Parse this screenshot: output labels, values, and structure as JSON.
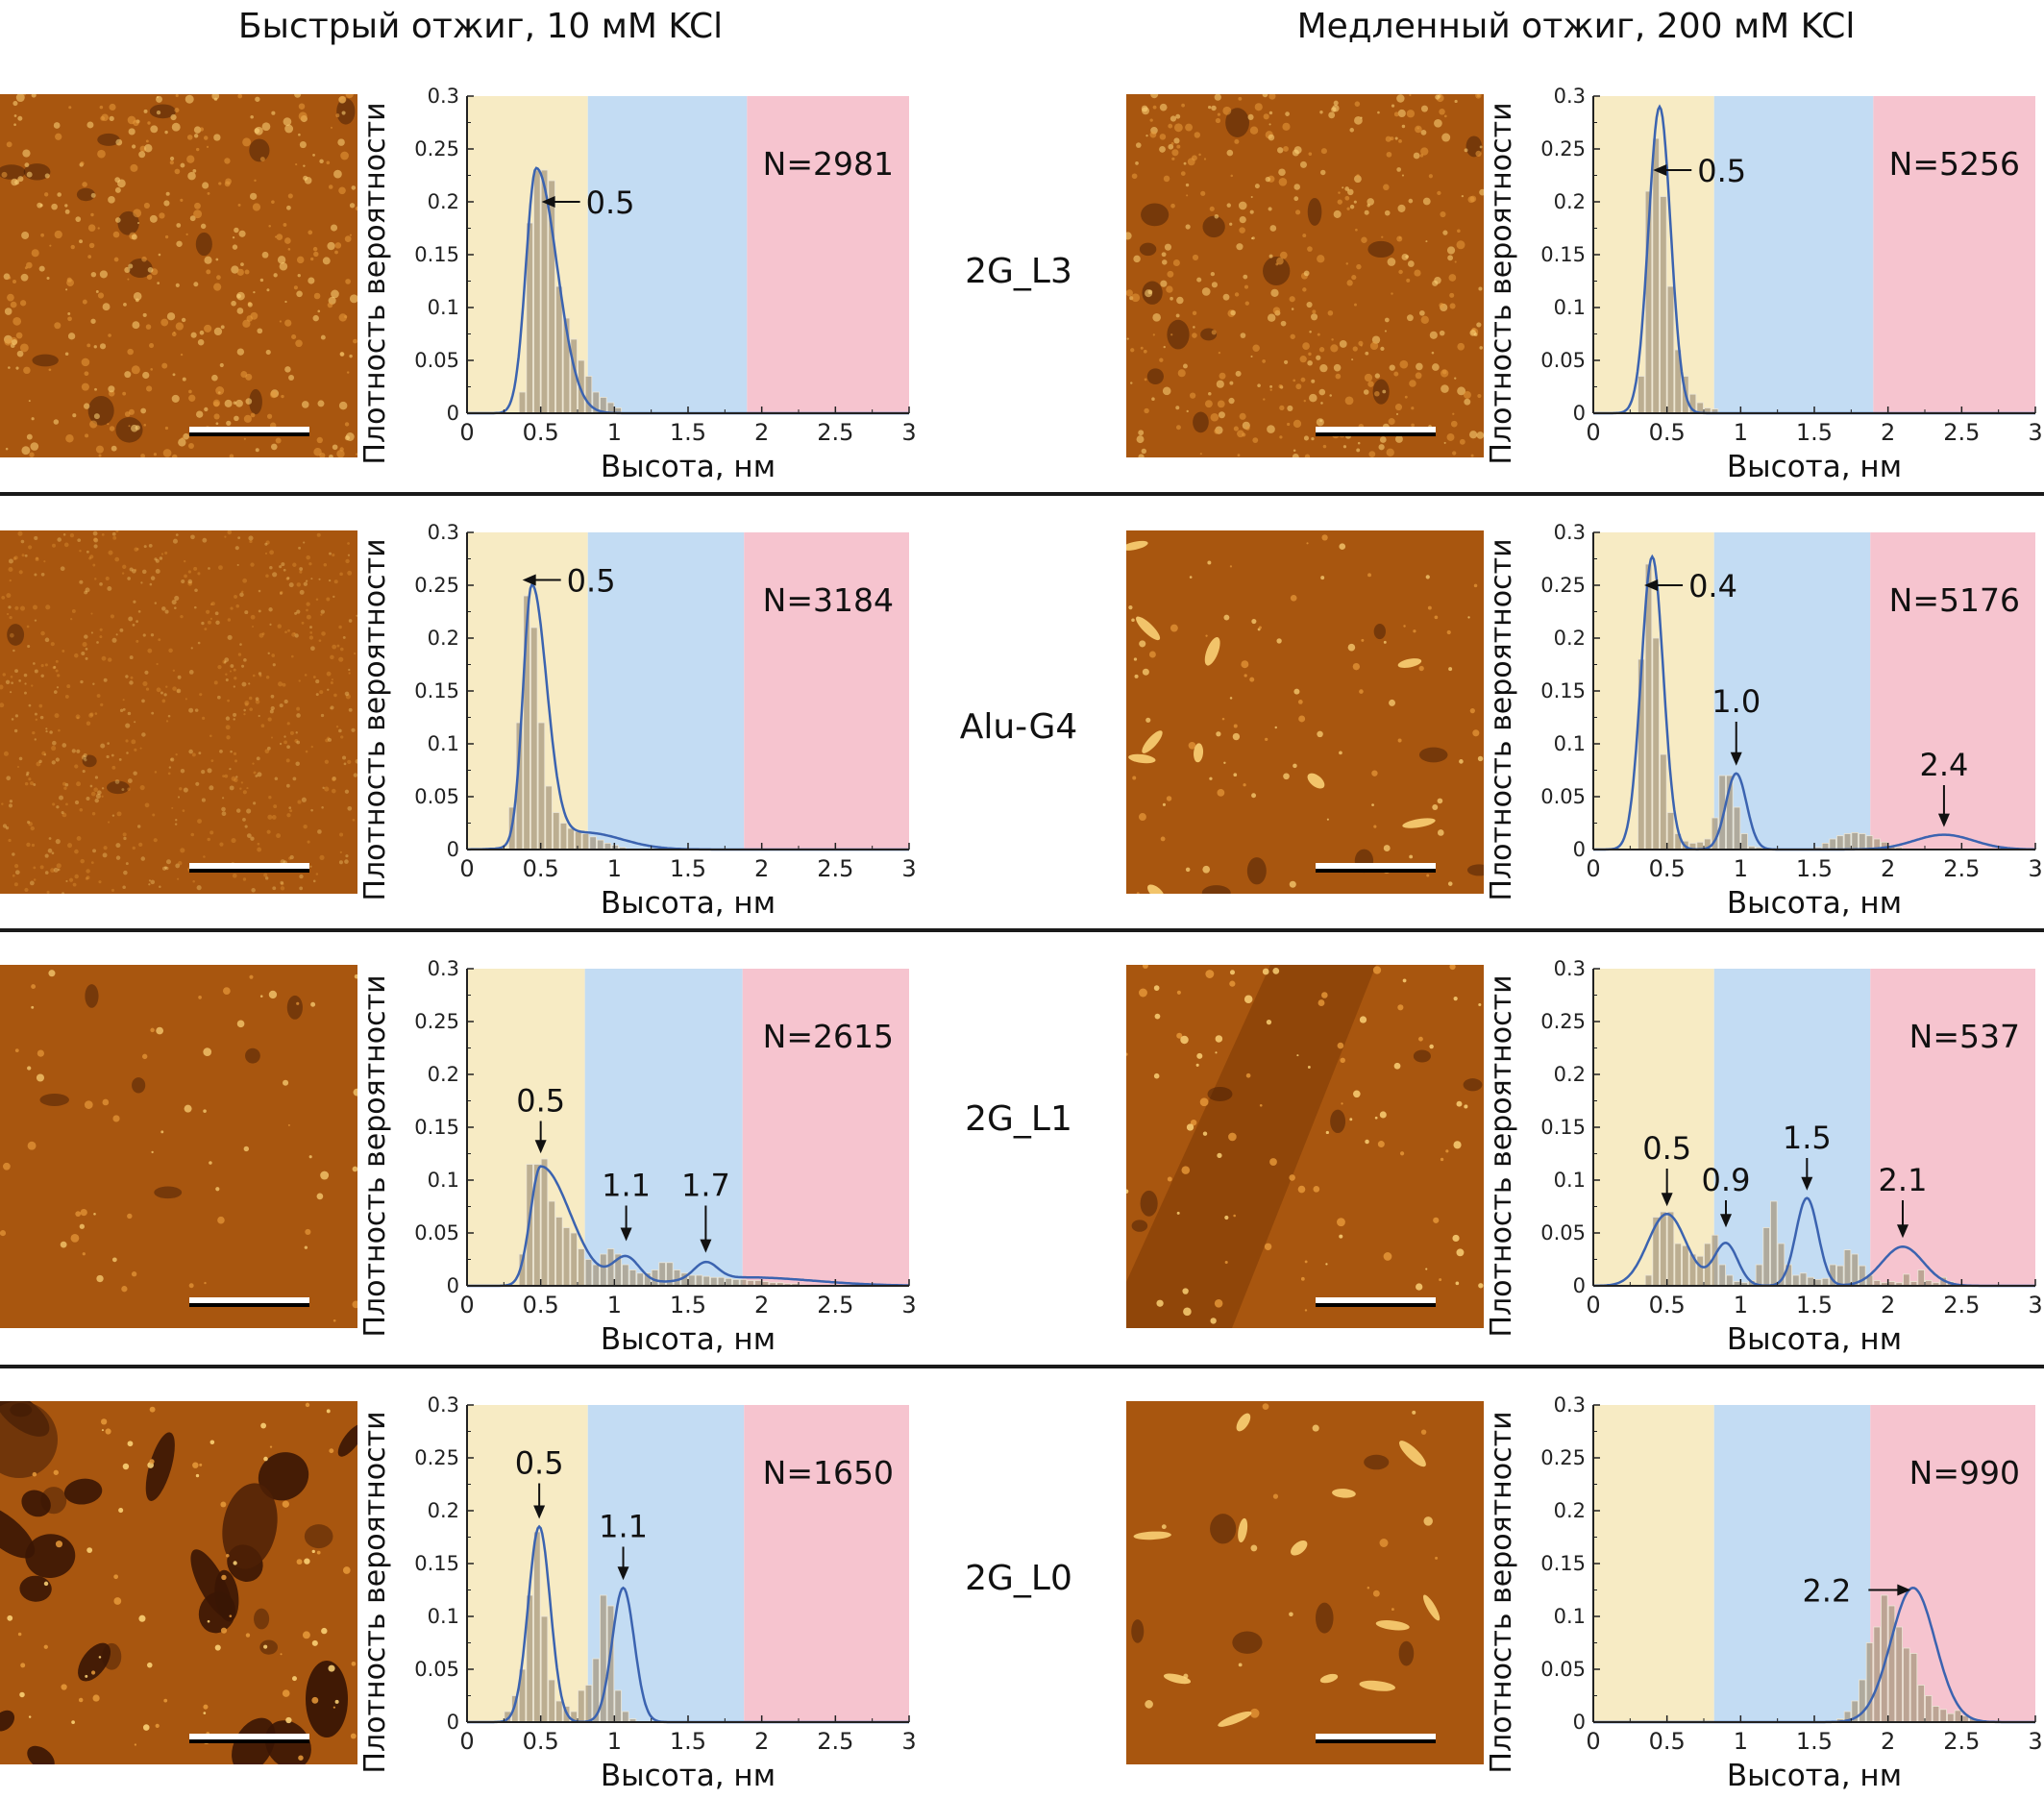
{
  "column_titles": {
    "left": "Быстрый отжиг, 10 мМ KCl",
    "right": "Медленный отжиг, 200 мМ KCl"
  },
  "rows": [
    {
      "label": "2G_L3"
    },
    {
      "label": "Alu-G4"
    },
    {
      "label": "2G_L1"
    },
    {
      "label": "2G_L0"
    }
  ],
  "axes": {
    "xlabel": "Высота, нм",
    "ylabel": "Плотность вероятности",
    "xlim": [
      0,
      3
    ],
    "ylim": [
      0,
      0.3
    ],
    "xticks": [
      "0",
      "0.5",
      "1",
      "1.5",
      "2",
      "2.5",
      "3"
    ],
    "yticks": [
      "0",
      "0.05",
      "0.1",
      "0.15",
      "0.2",
      "0.25",
      "0.3"
    ]
  },
  "colors": {
    "region_1": "#f7ebc4",
    "region_2": "#c3dcf3",
    "region_3": "#f6c4cf",
    "bars": "#a89a80",
    "fit_line": "#3b63b0",
    "afm_base": "#a8560f",
    "afm_bright": "#ffd77a",
    "afm_dark": "#3a1604"
  },
  "chart_data": [
    {
      "type": "bar",
      "panel": "row1-left",
      "title": "2G_L3 — Быстрый отжиг, 10 мМ KCl",
      "xlabel": "Высота, нм",
      "ylabel": "Плотность вероятности",
      "xlim": [
        0,
        3
      ],
      "ylim": [
        0,
        0.3
      ],
      "regions": [
        {
          "from": 0,
          "to": 0.82,
          "color": "region_1"
        },
        {
          "from": 0.82,
          "to": 1.9,
          "color": "region_2"
        },
        {
          "from": 1.9,
          "to": 3,
          "color": "region_3"
        }
      ],
      "n_label": "N=2981",
      "bin_width": 0.05,
      "bins_start": 0.35,
      "values": [
        0.02,
        0.18,
        0.23,
        0.23,
        0.22,
        0.12,
        0.09,
        0.07,
        0.05,
        0.035,
        0.02,
        0.015,
        0.01,
        0.005
      ],
      "fit": [
        {
          "type": "skew",
          "mu": 0.47,
          "sl": 0.07,
          "sr": 0.14,
          "a": 0.232
        }
      ],
      "peaks": [
        {
          "label": "0.5",
          "x": 0.47,
          "y": 0.232,
          "arrow": "left",
          "lx": 0.78,
          "ly": 0.2
        }
      ]
    },
    {
      "type": "bar",
      "panel": "row1-right",
      "title": "2G_L3 — Медленный отжиг, 200 мМ KCl",
      "xlabel": "Высота, нм",
      "ylabel": "Плотность вероятности",
      "xlim": [
        0,
        3
      ],
      "ylim": [
        0,
        0.3
      ],
      "regions": [
        {
          "from": 0,
          "to": 0.82,
          "color": "region_1"
        },
        {
          "from": 0.82,
          "to": 1.9,
          "color": "region_2"
        },
        {
          "from": 1.9,
          "to": 3,
          "color": "region_3"
        }
      ],
      "n_label": "N=5256",
      "bin_width": 0.05,
      "bins_start": 0.3,
      "values": [
        0.035,
        0.21,
        0.26,
        0.205,
        0.12,
        0.06,
        0.035,
        0.018,
        0.01,
        0.005,
        0.004
      ],
      "fit": [
        {
          "type": "gauss",
          "mu": 0.45,
          "s": 0.075,
          "a": 0.29
        }
      ],
      "peaks": [
        {
          "label": "0.5",
          "x": 0.45,
          "y": 0.29,
          "arrow": "left",
          "lx": 0.68,
          "ly": 0.23
        }
      ]
    },
    {
      "type": "bar",
      "panel": "row2-left",
      "title": "Alu-G4 — Быстрый отжиг, 10 мМ KCl",
      "xlabel": "Высота, нм",
      "ylabel": "Плотность вероятности",
      "xlim": [
        0,
        3
      ],
      "ylim": [
        0,
        0.3
      ],
      "regions": [
        {
          "from": 0,
          "to": 0.82,
          "color": "region_1"
        },
        {
          "from": 0.82,
          "to": 1.88,
          "color": "region_2"
        },
        {
          "from": 1.88,
          "to": 3,
          "color": "region_3"
        }
      ],
      "n_label": "N=3184",
      "bin_width": 0.05,
      "bins_start": 0.28,
      "values": [
        0.04,
        0.12,
        0.24,
        0.21,
        0.12,
        0.06,
        0.035,
        0.025,
        0.02,
        0.017,
        0.015,
        0.012,
        0.009,
        0.006,
        0.004,
        0.002
      ],
      "fit": [
        {
          "type": "skew",
          "mu": 0.44,
          "sl": 0.06,
          "sr": 0.1,
          "a": 0.245
        },
        {
          "type": "gauss",
          "mu": 0.8,
          "s": 0.25,
          "a": 0.016
        }
      ],
      "peaks": [
        {
          "label": "0.5",
          "x": 0.44,
          "y": 0.26,
          "arrow": "left",
          "lx": 0.65,
          "ly": 0.255
        }
      ]
    },
    {
      "type": "bar",
      "panel": "row2-right",
      "title": "Alu-G4 — Медленный отжиг, 200 мМ KCl",
      "xlabel": "Высота, нм",
      "ylabel": "Плотность вероятности",
      "xlim": [
        0,
        3
      ],
      "ylim": [
        0,
        0.3
      ],
      "regions": [
        {
          "from": 0,
          "to": 0.82,
          "color": "region_1"
        },
        {
          "from": 0.82,
          "to": 1.88,
          "color": "region_2"
        },
        {
          "from": 1.88,
          "to": 3,
          "color": "region_3"
        }
      ],
      "n_label": "N=5176",
      "bin_width": 0.05,
      "bins_start": 0.3,
      "values": [
        0.18,
        0.27,
        0.2,
        0.09,
        0.035,
        0.015,
        0.008,
        0.006,
        0.007,
        0.01,
        0.03,
        0.07,
        0.07,
        0.04,
        0.015,
        0.003,
        0.002,
        0.001,
        0,
        0,
        0,
        0,
        0,
        0,
        0.002,
        0.006,
        0.01,
        0.013,
        0.015,
        0.016,
        0.015,
        0.013,
        0.01,
        0.007,
        0.004,
        0.002
      ],
      "fit": [
        {
          "type": "gauss",
          "mu": 0.4,
          "s": 0.075,
          "a": 0.277
        },
        {
          "type": "gauss",
          "mu": 0.97,
          "s": 0.07,
          "a": 0.072
        },
        {
          "type": "gauss",
          "mu": 2.38,
          "s": 0.2,
          "a": 0.014
        }
      ],
      "peaks": [
        {
          "label": "0.4",
          "x": 0.4,
          "y": 0.277,
          "arrow": "left",
          "lx": 0.62,
          "ly": 0.25
        },
        {
          "label": "1.0",
          "x": 0.97,
          "y": 0.072,
          "arrow": "down",
          "lx": 0.97,
          "ly": 0.13
        },
        {
          "label": "2.4",
          "x": 2.38,
          "y": 0.014,
          "arrow": "down",
          "lx": 2.38,
          "ly": 0.07
        }
      ]
    },
    {
      "type": "bar",
      "panel": "row3-left",
      "title": "2G_L1 — Быстрый отжиг, 10 мМ KCl",
      "xlabel": "Высота, нм",
      "ylabel": "Плотность вероятности",
      "xlim": [
        0,
        3
      ],
      "ylim": [
        0,
        0.3
      ],
      "regions": [
        {
          "from": 0,
          "to": 0.8,
          "color": "region_1"
        },
        {
          "from": 0.8,
          "to": 1.87,
          "color": "region_2"
        },
        {
          "from": 1.87,
          "to": 3,
          "color": "region_3"
        }
      ],
      "n_label": "N=2615",
      "bin_width": 0.05,
      "bins_start": 0.35,
      "values": [
        0.03,
        0.115,
        0.115,
        0.12,
        0.08,
        0.065,
        0.055,
        0.05,
        0.035,
        0.025,
        0.02,
        0.03,
        0.035,
        0.03,
        0.02,
        0.015,
        0.012,
        0.012,
        0.015,
        0.022,
        0.022,
        0.015,
        0.012,
        0.01,
        0.01,
        0.009,
        0.008,
        0.008,
        0.007,
        0.006,
        0.006,
        0.005,
        0.005,
        0.004,
        0.003,
        0.003,
        0.002,
        0.002,
        0.001
      ],
      "fit": [
        {
          "type": "skew",
          "mu": 0.5,
          "sl": 0.07,
          "sr": 0.2,
          "a": 0.113
        },
        {
          "type": "gauss",
          "mu": 1.08,
          "s": 0.09,
          "a": 0.025
        },
        {
          "type": "gauss",
          "mu": 1.62,
          "s": 0.08,
          "a": 0.016
        },
        {
          "type": "gauss",
          "mu": 1.9,
          "s": 0.45,
          "a": 0.008
        }
      ],
      "peaks": [
        {
          "label": "0.5",
          "x": 0.5,
          "y": 0.118,
          "arrow": "down",
          "lx": 0.5,
          "ly": 0.165
        },
        {
          "label": "1.1",
          "x": 1.08,
          "y": 0.035,
          "arrow": "down",
          "lx": 1.08,
          "ly": 0.085
        },
        {
          "label": "1.7",
          "x": 1.62,
          "y": 0.024,
          "arrow": "down",
          "lx": 1.62,
          "ly": 0.085
        }
      ]
    },
    {
      "type": "bar",
      "panel": "row3-right",
      "title": "2G_L1 — Медленный отжиг, 200 мМ KCl",
      "xlabel": "Высота, нм",
      "ylabel": "Плотность вероятности",
      "xlim": [
        0,
        3
      ],
      "ylim": [
        0,
        0.3
      ],
      "regions": [
        {
          "from": 0,
          "to": 0.82,
          "color": "region_1"
        },
        {
          "from": 0.82,
          "to": 1.88,
          "color": "region_2"
        },
        {
          "from": 1.88,
          "to": 3,
          "color": "region_3"
        }
      ],
      "n_label": "N=537",
      "bin_width": 0.05,
      "bins_start": 0.35,
      "values": [
        0.01,
        0.065,
        0.07,
        0.07,
        0.04,
        0.038,
        0.03,
        0.028,
        0.04,
        0.048,
        0.02,
        0.01,
        0.004,
        0.003,
        0.005,
        0.02,
        0.055,
        0.08,
        0.04,
        0.02,
        0.01,
        0.012,
        0.008,
        0.006,
        0.007,
        0.02,
        0.019,
        0.034,
        0.03,
        0.019,
        0.01,
        0.005,
        0.003,
        0.004,
        0.003,
        0.011,
        0.004,
        0.015,
        0.005,
        0.003,
        0.008,
        0.004
      ],
      "fit": [
        {
          "type": "gauss",
          "mu": 0.5,
          "s": 0.13,
          "a": 0.068
        },
        {
          "type": "gauss",
          "mu": 0.9,
          "s": 0.08,
          "a": 0.04
        },
        {
          "type": "gauss",
          "mu": 1.45,
          "s": 0.075,
          "a": 0.083
        },
        {
          "type": "gauss",
          "mu": 2.1,
          "s": 0.14,
          "a": 0.037
        }
      ],
      "peaks": [
        {
          "label": "0.5",
          "x": 0.5,
          "y": 0.068,
          "arrow": "down",
          "lx": 0.5,
          "ly": 0.12
        },
        {
          "label": "0.9",
          "x": 0.9,
          "y": 0.048,
          "arrow": "down",
          "lx": 0.9,
          "ly": 0.09
        },
        {
          "label": "1.5",
          "x": 1.45,
          "y": 0.083,
          "arrow": "down",
          "lx": 1.45,
          "ly": 0.13
        },
        {
          "label": "2.1",
          "x": 2.1,
          "y": 0.038,
          "arrow": "down",
          "lx": 2.1,
          "ly": 0.09
        }
      ]
    },
    {
      "type": "bar",
      "panel": "row4-left",
      "title": "2G_L0 — Быстрый отжиг, 10 мМ KCl",
      "xlabel": "Высота, нм",
      "ylabel": "Плотность вероятности",
      "xlim": [
        0,
        3
      ],
      "ylim": [
        0,
        0.3
      ],
      "regions": [
        {
          "from": 0,
          "to": 0.82,
          "color": "region_1"
        },
        {
          "from": 0.82,
          "to": 1.88,
          "color": "region_2"
        },
        {
          "from": 1.88,
          "to": 3,
          "color": "region_3"
        }
      ],
      "n_label": "N=1650",
      "bin_width": 0.05,
      "bins_start": 0.25,
      "values": [
        0.01,
        0.025,
        0.05,
        0.12,
        0.18,
        0.1,
        0.04,
        0.02,
        0.015,
        0.01,
        0.03,
        0.035,
        0.06,
        0.12,
        0.11,
        0.03,
        0.01,
        0.003
      ],
      "fit": [
        {
          "type": "gauss",
          "mu": 0.49,
          "s": 0.075,
          "a": 0.185
        },
        {
          "type": "gauss",
          "mu": 1.06,
          "s": 0.075,
          "a": 0.127
        }
      ],
      "peaks": [
        {
          "label": "0.5",
          "x": 0.49,
          "y": 0.185,
          "arrow": "down",
          "lx": 0.49,
          "ly": 0.235
        },
        {
          "label": "1.1",
          "x": 1.06,
          "y": 0.127,
          "arrow": "down",
          "lx": 1.06,
          "ly": 0.175
        }
      ]
    },
    {
      "type": "bar",
      "panel": "row4-right",
      "title": "2G_L0 — Медленный отжиг, 200 мМ KCl",
      "xlabel": "Высота, нм",
      "ylabel": "Плотность вероятности",
      "xlim": [
        0,
        3
      ],
      "ylim": [
        0,
        0.3
      ],
      "regions": [
        {
          "from": 0,
          "to": 0.82,
          "color": "region_1"
        },
        {
          "from": 0.82,
          "to": 1.88,
          "color": "region_2"
        },
        {
          "from": 1.88,
          "to": 3,
          "color": "region_3"
        }
      ],
      "n_label": "N=990",
      "bin_width": 0.05,
      "bins_start": 1.65,
      "values": [
        0.003,
        0.01,
        0.02,
        0.04,
        0.075,
        0.09,
        0.12,
        0.11,
        0.09,
        0.07,
        0.065,
        0.035,
        0.025,
        0.015,
        0.012,
        0.008,
        0.011,
        0.006,
        0.004
      ],
      "fit": [
        {
          "type": "gauss",
          "mu": 2.17,
          "s": 0.15,
          "a": 0.127
        }
      ],
      "peaks": [
        {
          "label": "2.2",
          "x": 2.17,
          "y": 0.127,
          "arrow": "right",
          "lx": 1.75,
          "ly": 0.125
        }
      ]
    }
  ]
}
